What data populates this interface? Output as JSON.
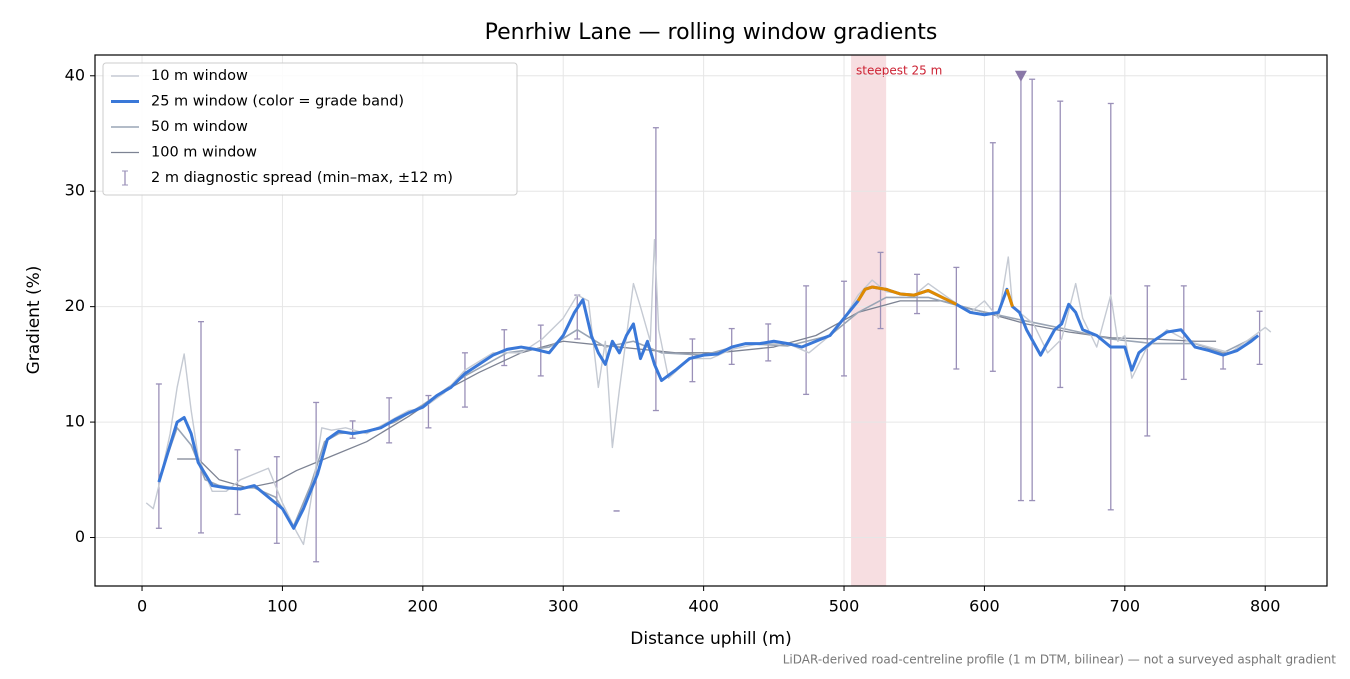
{
  "chart_data": {
    "type": "line",
    "title": "Penrhiw Lane — rolling window gradients",
    "x_label": "Distance uphill (m)",
    "y_label": "Gradient (%)",
    "footnote": "LiDAR-derived road-centreline profile (1 m DTM, bilinear) — not a surveyed asphalt gradient",
    "xlim": [
      -33.5,
      844
    ],
    "ylim": [
      -4.2,
      41.8
    ],
    "xticks": [
      0,
      100,
      200,
      300,
      400,
      500,
      600,
      700,
      800
    ],
    "yticks": [
      0,
      10,
      20,
      30,
      40
    ],
    "grid": true,
    "legend": "upper-left",
    "series": [
      {
        "name": "10 m window",
        "color": "#c5cad3",
        "width": 1.4,
        "x": [
          3,
          8,
          12,
          20,
          25,
          30,
          35,
          40,
          50,
          60,
          70,
          80,
          90,
          95,
          100,
          110,
          115,
          120,
          128,
          135,
          145,
          160,
          175,
          190,
          200,
          215,
          230,
          250,
          270,
          285,
          300,
          310,
          318,
          325,
          330,
          335,
          340,
          350,
          355,
          362,
          365,
          368,
          375,
          390,
          405,
          420,
          440,
          460,
          475,
          490,
          500,
          510,
          520,
          530,
          550,
          560,
          575,
          590,
          600,
          610,
          617,
          620,
          625,
          635,
          645,
          655,
          665,
          670,
          680,
          690,
          695,
          700,
          705,
          715,
          730,
          745,
          760,
          775,
          790,
          800,
          804
        ],
        "values": [
          3,
          2.5,
          4.5,
          9,
          13,
          15.9,
          11,
          7,
          4,
          4,
          5,
          5.5,
          6,
          4.5,
          3,
          0.5,
          -0.6,
          3,
          9.5,
          9.3,
          9.5,
          9,
          10,
          11,
          11.2,
          12.5,
          14.5,
          16,
          16,
          17.2,
          19,
          21,
          20.5,
          13,
          17,
          7.8,
          12.8,
          22,
          20,
          17,
          25.8,
          18,
          13.8,
          15.5,
          15.5,
          16.3,
          16.8,
          16.8,
          16,
          17.5,
          19,
          21,
          22.3,
          21.3,
          21,
          22,
          20.7,
          19.5,
          20.5,
          19,
          24.3,
          20,
          19.5,
          18.5,
          16,
          17.2,
          22,
          19,
          16.5,
          21,
          17,
          17.5,
          13.8,
          16.3,
          18,
          17,
          16.5,
          16,
          17.3,
          18.2,
          17.8
        ]
      },
      {
        "name": "25 m window (color = grade band)",
        "color": "#3a78d8",
        "width": 3,
        "highlight_above": 20,
        "highlight_color": "#e08a00",
        "x": [
          12,
          20,
          25,
          30,
          35,
          40,
          50,
          60,
          70,
          80,
          90,
          100,
          108,
          115,
          125,
          132,
          140,
          150,
          160,
          170,
          180,
          190,
          200,
          210,
          220,
          230,
          240,
          250,
          260,
          270,
          280,
          290,
          300,
          308,
          314,
          320,
          325,
          330,
          335,
          340,
          345,
          350,
          355,
          360,
          365,
          370,
          380,
          390,
          400,
          410,
          420,
          430,
          440,
          450,
          460,
          470,
          480,
          490,
          500,
          510,
          515,
          520,
          530,
          540,
          550,
          560,
          570,
          580,
          590,
          600,
          610,
          616,
          620,
          625,
          630,
          640,
          650,
          655,
          660,
          665,
          670,
          680,
          690,
          700,
          705,
          710,
          720,
          730,
          740,
          750,
          760,
          770,
          780,
          790,
          795
        ],
        "values": [
          4.8,
          8,
          10,
          10.4,
          9,
          6.5,
          4.5,
          4.3,
          4.2,
          4.5,
          3.5,
          2.5,
          0.8,
          2.5,
          5.5,
          8.5,
          9.2,
          9,
          9.2,
          9.5,
          10.2,
          10.8,
          11.3,
          12.3,
          13,
          14.2,
          15,
          15.8,
          16.3,
          16.5,
          16.3,
          16,
          17.5,
          19.5,
          20.6,
          17.5,
          16,
          15,
          17,
          16,
          17.5,
          18.5,
          15.5,
          17,
          15,
          13.6,
          14.5,
          15.5,
          15.8,
          15.9,
          16.5,
          16.8,
          16.8,
          17,
          16.8,
          16.5,
          17,
          17.5,
          19,
          20.5,
          21.5,
          21.7,
          21.5,
          21.1,
          21,
          21.4,
          20.8,
          20.2,
          19.5,
          19.3,
          19.5,
          21.5,
          20,
          19.5,
          18,
          15.8,
          18,
          18.5,
          20.2,
          19.5,
          18,
          17.5,
          16.5,
          16.5,
          14.5,
          16,
          17,
          17.8,
          18,
          16.5,
          16.2,
          15.8,
          16.2,
          17,
          17.5
        ]
      },
      {
        "name": "50 m window",
        "color": "#9aa5b5",
        "width": 1.6,
        "x": [
          12,
          25,
          35,
          45,
          55,
          65,
          80,
          95,
          108,
          120,
          130,
          140,
          160,
          180,
          200,
          230,
          260,
          290,
          310,
          330,
          350,
          370,
          400,
          430,
          460,
          490,
          510,
          530,
          560,
          590,
          620,
          640,
          660,
          690,
          720,
          750,
          770,
          795
        ],
        "values": [
          5,
          9.5,
          8,
          5,
          4.5,
          4.3,
          4.3,
          3.5,
          1,
          4.5,
          8.3,
          9,
          9.2,
          10,
          11.5,
          14,
          16,
          16.5,
          18,
          16.5,
          17,
          16,
          15.8,
          16.8,
          16.6,
          17.5,
          19.5,
          20.8,
          20.8,
          19.8,
          19,
          18.5,
          18,
          17.2,
          16.8,
          16.8,
          16,
          17.5
        ]
      },
      {
        "name": "100 m window",
        "color": "#7d8393",
        "width": 1.3,
        "x": [
          25,
          40,
          55,
          75,
          95,
          110,
          130,
          160,
          190,
          220,
          240,
          270,
          300,
          340,
          380,
          410,
          450,
          480,
          510,
          540,
          570,
          600,
          630,
          660,
          690,
          720,
          750,
          765
        ],
        "values": [
          6.8,
          6.8,
          5,
          4.3,
          4.8,
          5.8,
          6.8,
          8.3,
          10.5,
          13,
          14.3,
          16,
          17,
          16.5,
          16,
          16,
          16.5,
          17.5,
          19.5,
          20.5,
          20.5,
          19.5,
          18.5,
          17.8,
          17.3,
          17.2,
          17,
          17
        ]
      }
    ],
    "error_bars": {
      "name": "2 m diagnostic spread (min–max, ±12 m)",
      "color": "#9a90b8",
      "x": [
        12,
        42,
        68,
        96,
        124,
        150,
        176,
        204,
        230,
        258,
        284,
        310,
        338,
        366,
        392,
        420,
        446,
        473,
        500,
        526,
        552,
        580,
        606,
        626,
        634,
        654,
        690,
        716,
        742,
        770,
        796
      ],
      "low": [
        0.8,
        0.4,
        2,
        -0.5,
        -2.1,
        8.6,
        8.2,
        9.5,
        11.3,
        14.9,
        14,
        17.2,
        2.3,
        11,
        13.5,
        15,
        15.3,
        12.4,
        14,
        18.1,
        19.4,
        14.6,
        14.4,
        3.2,
        3.2,
        13,
        2.4,
        8.8,
        13.7,
        14.6,
        15
      ],
      "high": [
        13.3,
        18.7,
        7.6,
        7,
        11.7,
        10.1,
        12.1,
        12.3,
        16,
        18,
        18.4,
        21,
        2.3,
        35.5,
        17.2,
        18.1,
        18.5,
        21.8,
        22.2,
        24.7,
        22.8,
        23.4,
        34.2,
        40,
        39.7,
        37.8,
        37.6,
        21.8,
        21.8,
        16,
        19.6
      ]
    },
    "marker": {
      "x": 626,
      "y": 40,
      "color": "#8a78a8"
    },
    "highlight_span": {
      "x": [
        505,
        530
      ],
      "label": "steepest 25 m",
      "color": "#e8a0a8",
      "label_color": "#cc2233"
    }
  }
}
